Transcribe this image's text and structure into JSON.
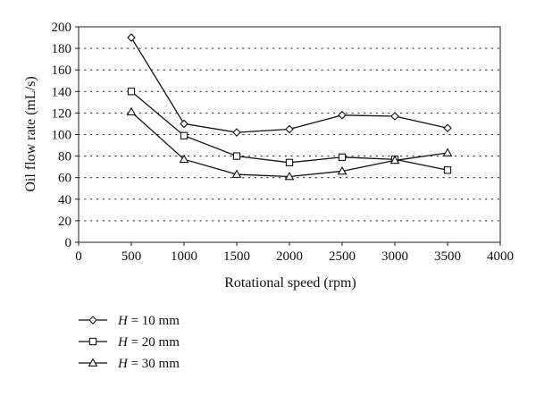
{
  "chart_data": {
    "type": "line",
    "title": "",
    "xlabel": "Rotational speed (rpm)",
    "ylabel": "Oil flow rate (mL/s)",
    "xlim": [
      0,
      4000
    ],
    "ylim": [
      0,
      200
    ],
    "xticks": [
      0,
      500,
      1000,
      1500,
      2000,
      2500,
      3000,
      3500,
      4000
    ],
    "yticks": [
      0,
      20,
      40,
      60,
      80,
      100,
      120,
      140,
      160,
      180,
      200
    ],
    "grid": "horizontal-dotted",
    "legend_position": "bottom-left",
    "x": [
      500,
      1000,
      1500,
      2000,
      2500,
      3000,
      3500
    ],
    "series": [
      {
        "name_var": "H",
        "name_rest": " = 10 mm",
        "marker": "diamond",
        "values": [
          190,
          110,
          102,
          105,
          118,
          117,
          106
        ]
      },
      {
        "name_var": "H",
        "name_rest": " = 20 mm",
        "marker": "square",
        "values": [
          140,
          99,
          80,
          74,
          79,
          77,
          67
        ]
      },
      {
        "name_var": "H",
        "name_rest": " = 30 mm",
        "marker": "triangle",
        "values": [
          121,
          77,
          63,
          61,
          66,
          76,
          83
        ]
      }
    ]
  }
}
